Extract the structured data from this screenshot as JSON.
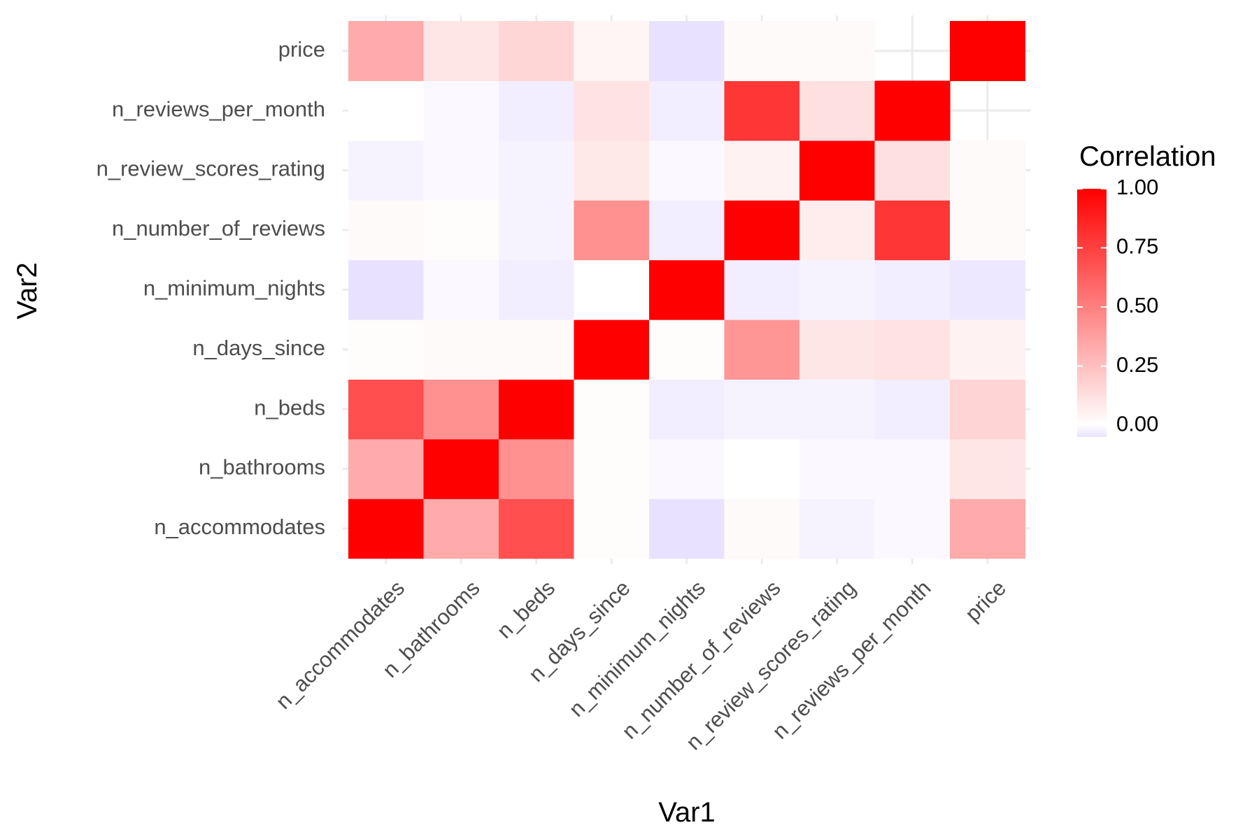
{
  "chart_data": {
    "type": "heatmap",
    "title": "",
    "xlabel": "Var1",
    "ylabel": "Var2",
    "x_categories": [
      "n_accommodates",
      "n_bathrooms",
      "n_beds",
      "n_days_since",
      "n_minimum_nights",
      "n_number_of_reviews",
      "n_review_scores_rating",
      "n_reviews_per_month",
      "price"
    ],
    "y_categories": [
      "n_accommodates",
      "n_bathrooms",
      "n_beds",
      "n_days_since",
      "n_minimum_nights",
      "n_number_of_reviews",
      "n_review_scores_rating",
      "n_reviews_per_month",
      "price"
    ],
    "matrix_note": "rows follow y_categories (bottom to top), columns follow x_categories; null = tile not drawn",
    "values": [
      [
        1.0,
        0.33,
        0.69,
        0.01,
        -0.05,
        0.02,
        -0.02,
        -0.01,
        0.33
      ],
      [
        0.33,
        1.0,
        0.43,
        0.01,
        -0.01,
        0.0,
        -0.01,
        -0.01,
        0.1
      ],
      [
        0.69,
        0.43,
        1.0,
        0.01,
        -0.03,
        -0.02,
        -0.02,
        -0.03,
        0.17
      ],
      [
        0.01,
        0.02,
        0.02,
        1.0,
        0.01,
        0.41,
        0.1,
        0.11,
        0.05
      ],
      [
        -0.05,
        -0.01,
        -0.03,
        0.0,
        1.0,
        -0.03,
        -0.02,
        -0.03,
        -0.04
      ],
      [
        0.02,
        0.01,
        -0.02,
        0.43,
        -0.03,
        1.0,
        0.07,
        0.79,
        0.02
      ],
      [
        -0.02,
        -0.01,
        -0.02,
        0.09,
        -0.01,
        0.05,
        1.0,
        0.12,
        0.02
      ],
      [
        0.0,
        -0.01,
        -0.03,
        0.11,
        -0.03,
        0.79,
        0.12,
        1.0,
        null
      ],
      [
        0.33,
        0.1,
        0.16,
        0.04,
        -0.05,
        0.02,
        0.02,
        null,
        1.0
      ]
    ],
    "legend": {
      "title": "Correlation",
      "ticks": [
        1.0,
        0.75,
        0.5,
        0.25,
        0.0
      ],
      "tick_labels": [
        "1.00",
        "0.75",
        "0.50",
        "0.25",
        "0.00"
      ],
      "placement": "right"
    },
    "colors": {
      "high": "#ff0000",
      "mid": "#ffffff",
      "low": "#e9e2ff",
      "tick_text": "#4d4d4d",
      "grid": "#ebebeb"
    },
    "grid": true
  }
}
